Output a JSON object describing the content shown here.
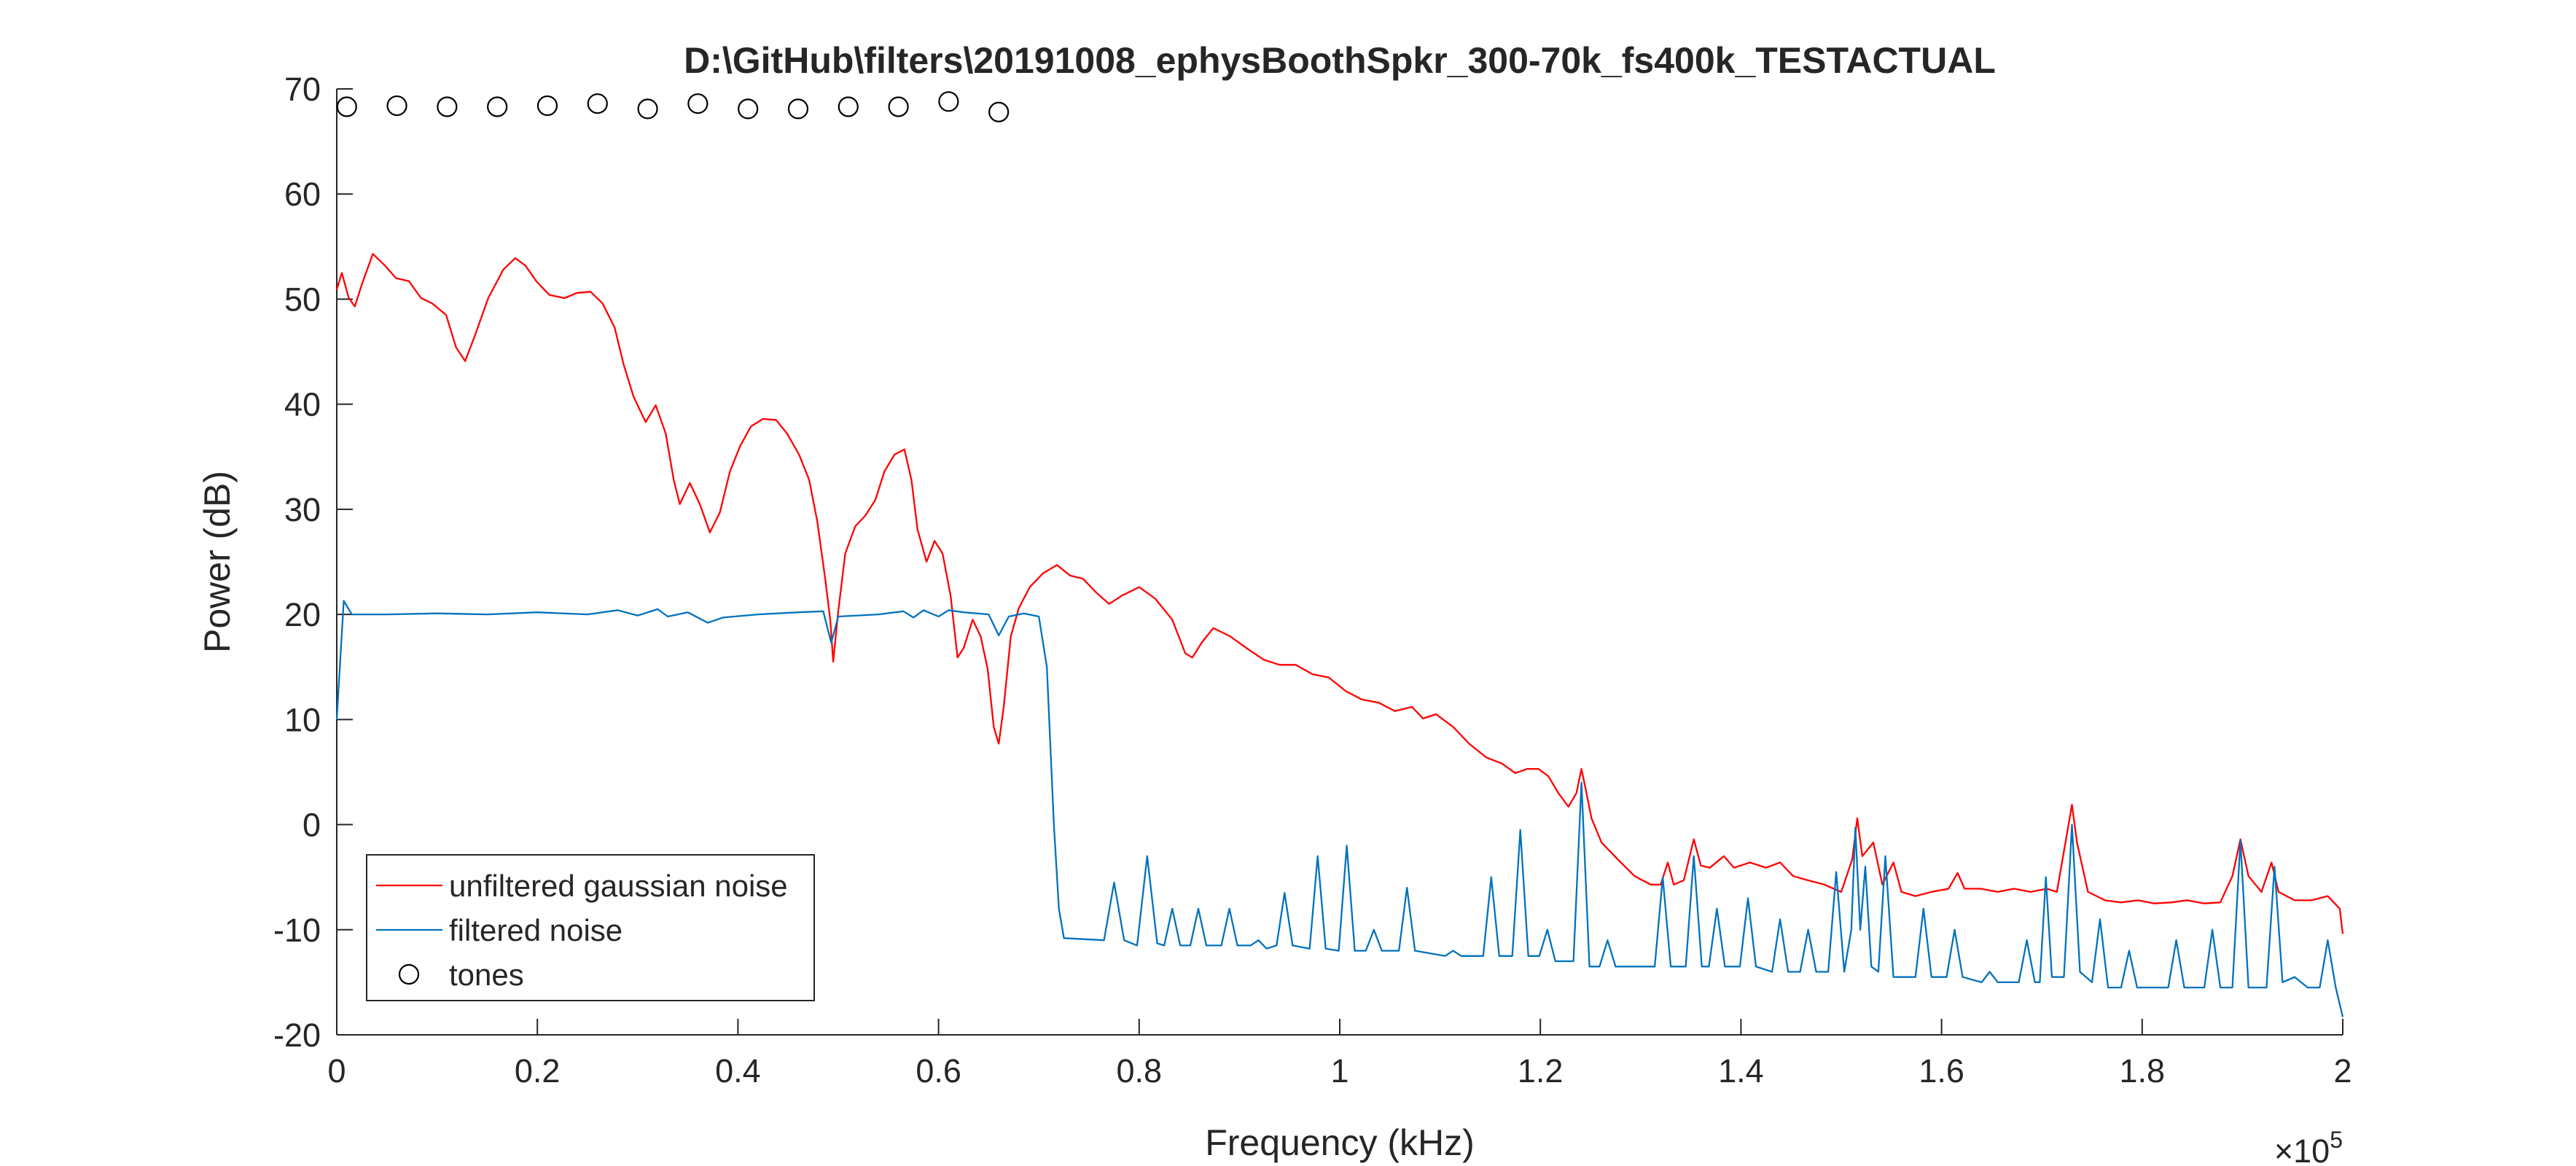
{
  "chart_data": {
    "type": "line",
    "title": "D:\\GitHub\\filters\\20191008_ephysBoothSpkr_300-70k_fs400k_TESTACTUAL",
    "x_label": "Frequency (kHz)",
    "y_label": "Power (dB)",
    "x_multiplier": "×10",
    "x_multiplier_exponent": "5",
    "xlim": [
      0,
      200000
    ],
    "ylim": [
      -20,
      70
    ],
    "xticks": [
      0,
      {
        "value": 20000,
        "label": "0.2"
      },
      {
        "value": 40000,
        "label": "0.4"
      },
      {
        "value": 60000,
        "label": "0.6"
      },
      {
        "value": 80000,
        "label": "0.8"
      },
      {
        "value": 100000,
        "label": "1"
      },
      {
        "value": 120000,
        "label": "1.2"
      },
      {
        "value": 140000,
        "label": "1.4"
      },
      {
        "value": 160000,
        "label": "1.6"
      },
      {
        "value": 180000,
        "label": "1.8"
      },
      {
        "value": 200000,
        "label": "2"
      }
    ],
    "yticks": [
      -20,
      -10,
      0,
      10,
      20,
      30,
      40,
      50,
      60,
      70
    ],
    "grid": false,
    "legend": "lower left",
    "series": [
      {
        "name": "unfiltered gaussian noise",
        "color": "#ff0000",
        "mode": "lines",
        "x": [
          0,
          500,
          1200,
          1800,
          2500,
          3600,
          4800,
          5900,
          7200,
          8400,
          9500,
          10900,
          11900,
          12800,
          13800,
          15100,
          16600,
          17800,
          18800,
          19900,
          21200,
          22700,
          24000,
          25300,
          26500,
          27700,
          28600,
          29600,
          30800,
          31800,
          32800,
          33600,
          34200,
          35200,
          36200,
          37200,
          38200,
          39200,
          40200,
          41300,
          42500,
          43800,
          44900,
          46100,
          47100,
          47900,
          48700,
          49200,
          49500,
          50000,
          50700,
          51700,
          52700,
          53700,
          54600,
          55600,
          56600,
          57300,
          57900,
          58800,
          59600,
          60400,
          61200,
          61900,
          62500,
          63400,
          64200,
          64900,
          65500,
          66000,
          66500,
          67200,
          68000,
          69100,
          70400,
          71800,
          73100,
          74400,
          75700,
          77000,
          78300,
          80000,
          81600,
          83300,
          84600,
          85300,
          86300,
          87400,
          89100,
          90700,
          92400,
          94000,
          95600,
          97300,
          98900,
          100600,
          102200,
          103900,
          105500,
          107200,
          108300,
          109600,
          111300,
          112900,
          114600,
          116200,
          117500,
          118700,
          119800,
          120800,
          121800,
          122800,
          123600,
          124100,
          124600,
          125100,
          126100,
          127700,
          129400,
          131000,
          132000,
          132700,
          133300,
          134300,
          135300,
          136000,
          136900,
          138300,
          139300,
          140900,
          142500,
          143900,
          145200,
          146700,
          148300,
          150000,
          151100,
          151600,
          152100,
          153200,
          154100,
          155200,
          156000,
          157400,
          159000,
          160700,
          161600,
          162300,
          163900,
          165600,
          167200,
          168900,
          170500,
          171500,
          172500,
          173000,
          173500,
          174600,
          176300,
          177900,
          179600,
          181200,
          182900,
          184500,
          186200,
          187800,
          189000,
          189800,
          190600,
          191900,
          192900,
          193600,
          195200,
          196900,
          198500,
          199700,
          200000
        ],
        "values": [
          50.9,
          52.5,
          50.1,
          49.3,
          51.4,
          54.3,
          53.2,
          52.0,
          51.7,
          50.1,
          49.6,
          48.5,
          45.4,
          44.1,
          46.6,
          50.1,
          52.8,
          53.9,
          53.2,
          51.7,
          50.4,
          50.1,
          50.6,
          50.7,
          49.6,
          47.3,
          43.8,
          40.7,
          38.3,
          39.9,
          37.2,
          32.8,
          30.5,
          32.5,
          30.5,
          27.8,
          29.7,
          33.6,
          36.0,
          37.9,
          38.6,
          38.5,
          37.2,
          35.2,
          32.8,
          28.9,
          23.4,
          19.5,
          15.5,
          20.3,
          25.8,
          28.4,
          29.4,
          30.9,
          33.6,
          35.2,
          35.7,
          32.8,
          28.1,
          25.0,
          27.0,
          25.8,
          21.8,
          15.9,
          16.8,
          19.5,
          17.9,
          14.8,
          9.3,
          7.7,
          11.2,
          17.9,
          20.6,
          22.6,
          23.9,
          24.7,
          23.7,
          23.4,
          22.1,
          21.0,
          21.8,
          22.6,
          21.5,
          19.5,
          16.3,
          15.9,
          17.4,
          18.7,
          17.9,
          16.8,
          15.7,
          15.2,
          15.2,
          14.3,
          14.0,
          12.7,
          11.9,
          11.6,
          10.8,
          11.2,
          10.1,
          10.5,
          9.3,
          7.7,
          6.4,
          5.8,
          4.9,
          5.3,
          5.3,
          4.6,
          3.0,
          1.7,
          3.0,
          5.3,
          3.0,
          0.6,
          -1.7,
          -3.3,
          -4.9,
          -5.7,
          -5.7,
          -3.6,
          -5.7,
          -5.3,
          -1.4,
          -3.9,
          -4.1,
          -3.0,
          -4.1,
          -3.6,
          -4.1,
          -3.6,
          -4.9,
          -5.3,
          -5.7,
          -6.4,
          -3.3,
          0.6,
          -3.0,
          -1.7,
          -5.7,
          -3.6,
          -6.4,
          -6.8,
          -6.4,
          -6.1,
          -4.6,
          -6.1,
          -6.1,
          -6.4,
          -6.1,
          -6.4,
          -6.1,
          -6.4,
          -0.9,
          1.9,
          -1.7,
          -6.4,
          -7.2,
          -7.4,
          -7.2,
          -7.5,
          -7.4,
          -7.2,
          -7.5,
          -7.4,
          -4.9,
          -1.4,
          -4.9,
          -6.4,
          -3.6,
          -6.4,
          -7.2,
          -7.2,
          -6.8,
          -8.0,
          -10.4
        ]
      },
      {
        "name": "filtered noise",
        "color": "#0072bd",
        "mode": "lines",
        "x": [
          0,
          700,
          1500,
          5000,
          10000,
          15000,
          20000,
          25000,
          28000,
          30000,
          32000,
          33000,
          35000,
          37000,
          38500,
          42000,
          46000,
          48500,
          49300,
          50000,
          54000,
          56500,
          57500,
          58500,
          60000,
          61000,
          62500,
          65000,
          66000,
          67000,
          68500,
          70000,
          70800,
          71500,
          72000,
          72500,
          76500,
          77500,
          78500,
          79800,
          80800,
          81800,
          82500,
          83300,
          84100,
          85100,
          85900,
          86700,
          88200,
          89000,
          89800,
          91100,
          91900,
          92700,
          93700,
          94500,
          95300,
          97000,
          97800,
          98600,
          99900,
          100700,
          101500,
          102600,
          103400,
          104200,
          105900,
          106700,
          107500,
          110500,
          111300,
          112100,
          114300,
          115100,
          115900,
          117200,
          118000,
          118800,
          119900,
          120700,
          121500,
          123300,
          124100,
          124900,
          125900,
          126700,
          127500,
          131400,
          132200,
          133000,
          134500,
          135300,
          136100,
          136800,
          137600,
          138400,
          139900,
          140700,
          141500,
          143100,
          143900,
          144700,
          145900,
          146700,
          147500,
          148700,
          149500,
          150300,
          151000,
          151400,
          151900,
          152400,
          153000,
          153700,
          154400,
          155200,
          157400,
          158200,
          159000,
          160500,
          161300,
          162100,
          164000,
          164800,
          165600,
          167700,
          168500,
          169300,
          169800,
          170400,
          171000,
          172200,
          173000,
          173800,
          175000,
          175800,
          176600,
          177900,
          178700,
          179500,
          182600,
          183400,
          184200,
          186200,
          187000,
          187800,
          189000,
          189800,
          190600,
          192400,
          193200,
          194000,
          195200,
          196500,
          197700,
          198500,
          199300,
          200000
        ],
        "values": [
          10,
          21.3,
          20.0,
          20.0,
          20.1,
          20.0,
          20.2,
          20.0,
          20.4,
          19.9,
          20.5,
          19.8,
          20.2,
          19.2,
          19.7,
          20.0,
          20.2,
          20.3,
          17.3,
          19.8,
          20.0,
          20.3,
          19.7,
          20.4,
          19.8,
          20.4,
          20.2,
          20.0,
          18.0,
          19.8,
          20.1,
          19.8,
          15,
          0,
          -8,
          -10.8,
          -11,
          -5.5,
          -11,
          -11.5,
          -3.0,
          -11.3,
          -11.5,
          -8,
          -11.5,
          -11.5,
          -8,
          -11.5,
          -11.5,
          -8,
          -11.5,
          -11.5,
          -11,
          -11.8,
          -11.5,
          -6.5,
          -11.5,
          -11.8,
          -3,
          -11.8,
          -12,
          -2,
          -12,
          -12,
          -10,
          -12,
          -12,
          -6,
          -12,
          -12.5,
          -12,
          -12.5,
          -12.5,
          -5,
          -12.5,
          -12.5,
          -0.5,
          -12.5,
          -12.5,
          -10,
          -13,
          -13,
          4,
          -13.5,
          -13.5,
          -11,
          -13.5,
          -13.5,
          -5,
          -13.5,
          -13.5,
          -3,
          -13.5,
          -13.5,
          -8,
          -13.5,
          -13.5,
          -7,
          -13.5,
          -14,
          -9,
          -14,
          -14,
          -10,
          -14,
          -14,
          -4.5,
          -14,
          -10,
          -0.3,
          -10,
          -4,
          -13.5,
          -14,
          -3,
          -14.5,
          -14.5,
          -8,
          -14.5,
          -14.5,
          -10,
          -14.5,
          -15,
          -14,
          -15,
          -15,
          -11,
          -15,
          -15,
          -5,
          -14.5,
          -14.5,
          0,
          -14,
          -15,
          -9,
          -15.5,
          -15.5,
          -12,
          -15.5,
          -15.5,
          -11,
          -15.5,
          -15.5,
          -10,
          -15.5,
          -15.5,
          -1.5,
          -15.5,
          -15.5,
          -4,
          -15,
          -14.5,
          -15.5,
          -15.5,
          -11,
          -15.5,
          -18.3
        ]
      },
      {
        "name": "tones",
        "color": "#000000",
        "mode": "markers",
        "x": [
          1000,
          6000,
          11000,
          16000,
          21000,
          26000,
          31000,
          36000,
          41000,
          46000,
          51000,
          56000,
          61000,
          66000
        ],
        "values": [
          68.3,
          68.4,
          68.3,
          68.3,
          68.4,
          68.6,
          68.1,
          68.6,
          68.1,
          68.1,
          68.3,
          68.3,
          68.8,
          67.8
        ]
      }
    ]
  }
}
